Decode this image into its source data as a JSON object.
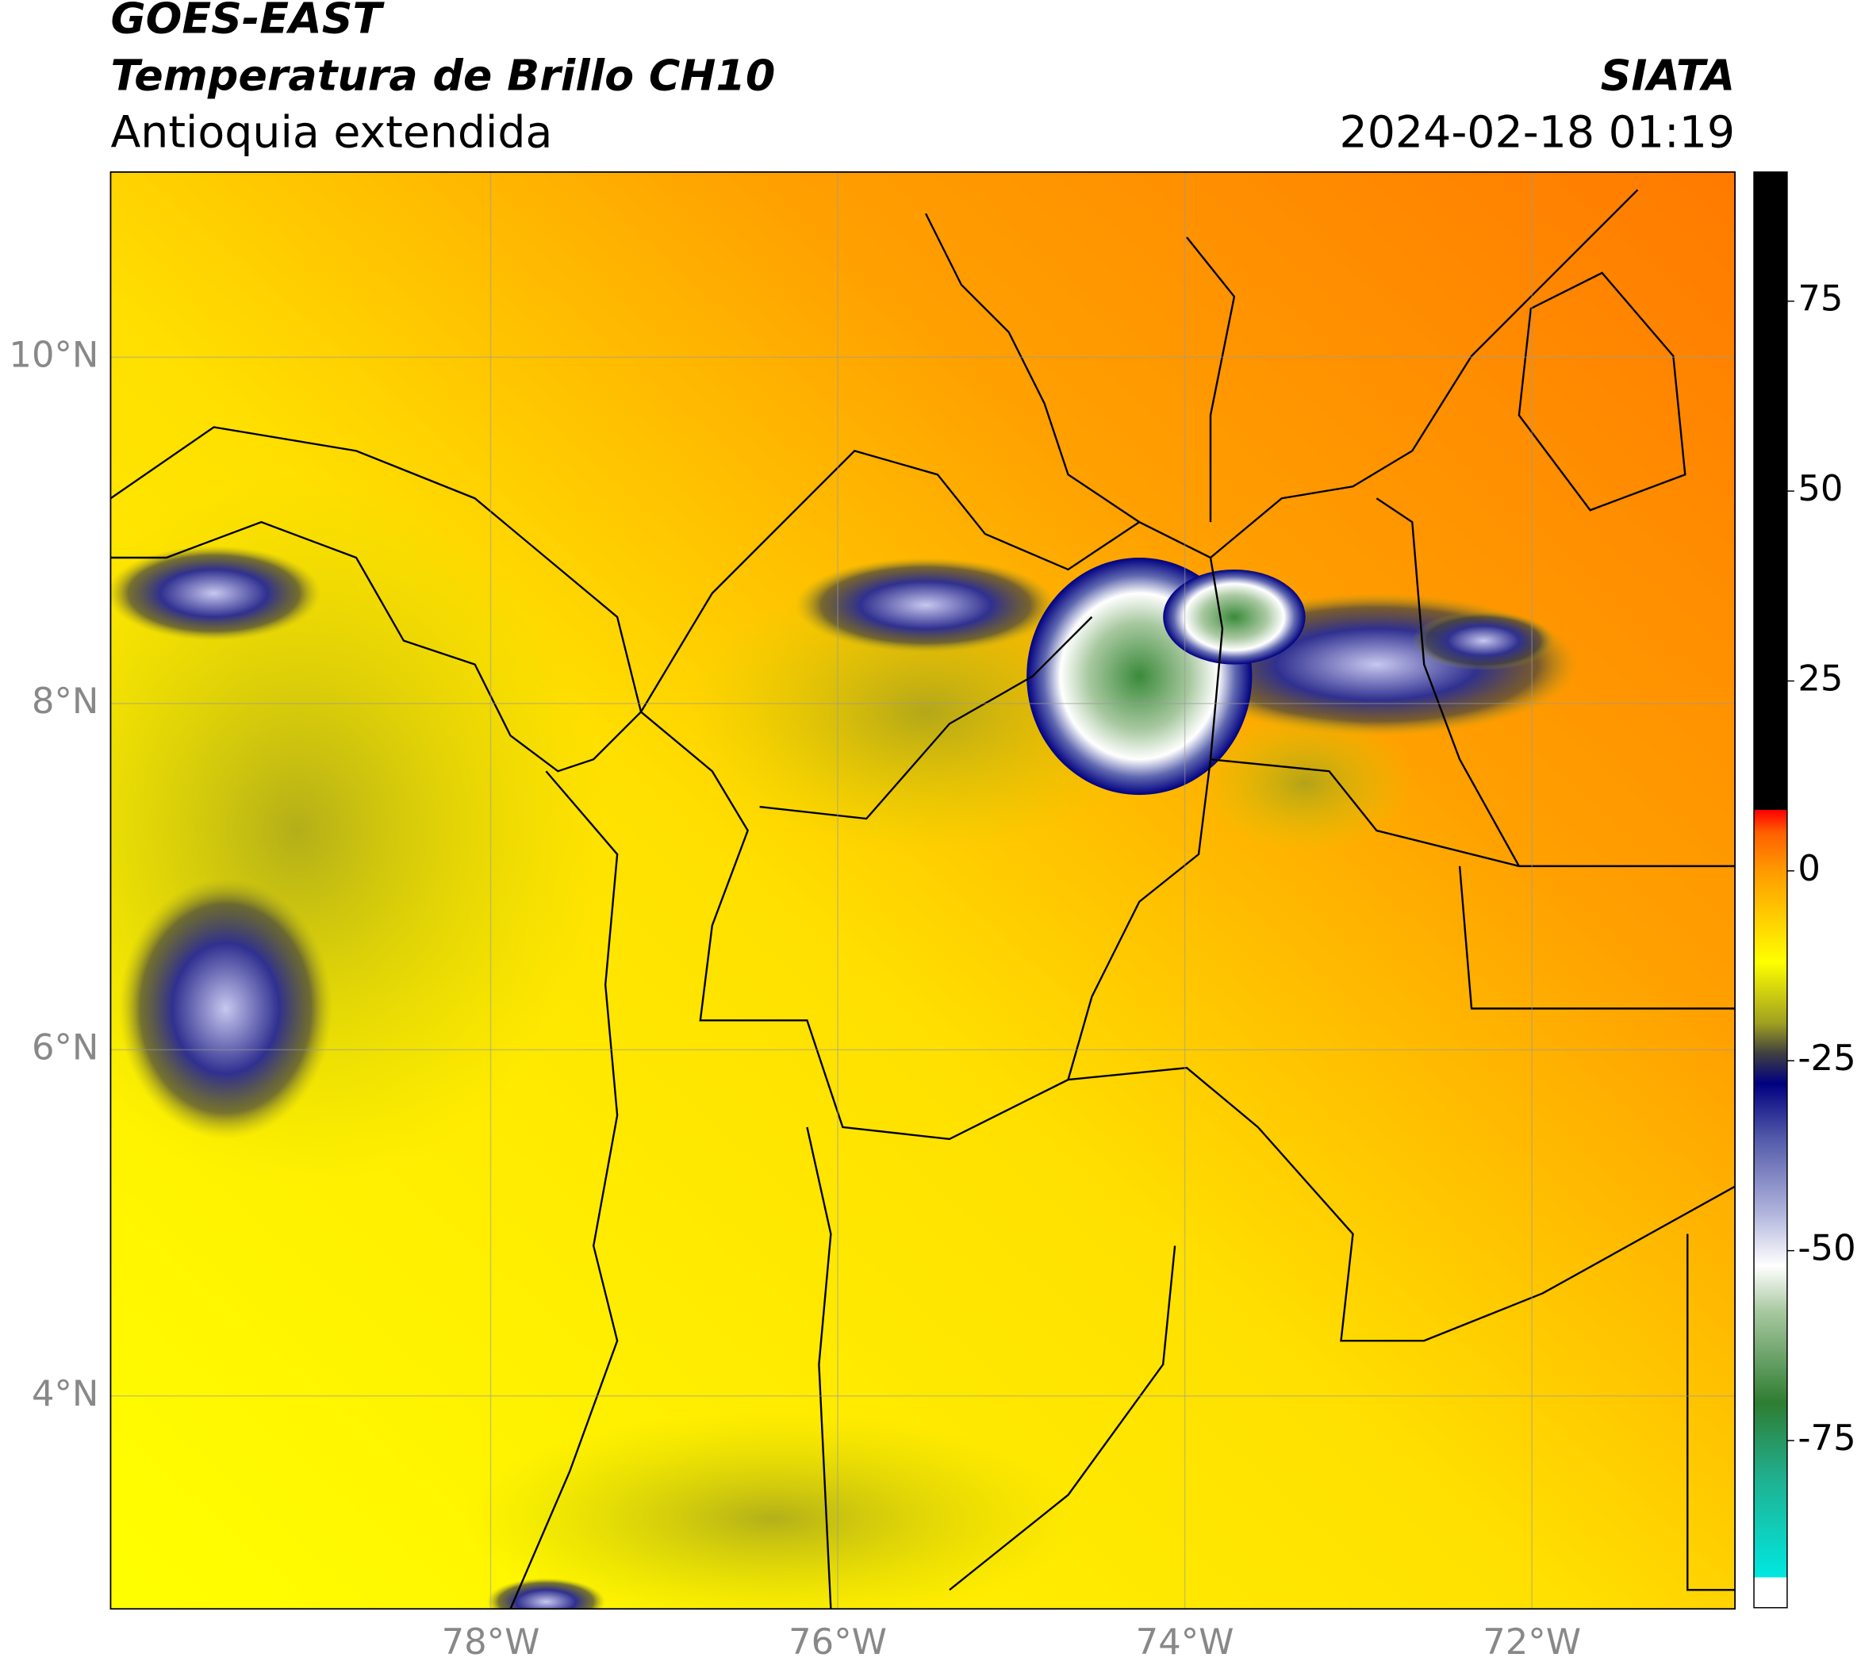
{
  "header": {
    "title": "GOES-EAST",
    "subtitle": "Temperatura de Brillo CH10",
    "region": "Antioquia extendida",
    "source": "SIATA",
    "datetime": "2024-02-18 01:19"
  },
  "map": {
    "lonlim": [
      -80.19,
      -70.83
    ],
    "latlim": [
      2.77,
      11.07
    ],
    "grid": true,
    "xticks": [
      {
        "value": -78,
        "label": "78°W"
      },
      {
        "value": -76,
        "label": "76°W"
      },
      {
        "value": -74,
        "label": "74°W"
      },
      {
        "value": -72,
        "label": "72°W"
      }
    ],
    "yticks": [
      {
        "value": 4,
        "label": "4°N"
      },
      {
        "value": 6,
        "label": "6°N"
      },
      {
        "value": 8,
        "label": "8°N"
      },
      {
        "value": 10,
        "label": "10°N"
      }
    ]
  },
  "colorbar": {
    "lim": [
      -97,
      92
    ],
    "ticks": [
      -75,
      -50,
      -25,
      0,
      25,
      50,
      75
    ],
    "stops": [
      {
        "value": -97,
        "color": "#ffffff"
      },
      {
        "value": -93,
        "color": "#ffffff"
      },
      {
        "value": -93,
        "color": "#00e8e0"
      },
      {
        "value": -80,
        "color": "#20b090"
      },
      {
        "value": -70,
        "color": "#2e7d32"
      },
      {
        "value": -58,
        "color": "#a8c8a0"
      },
      {
        "value": -52,
        "color": "#ffffff"
      },
      {
        "value": -45,
        "color": "#b0b4dc"
      },
      {
        "value": -35,
        "color": "#5058a8"
      },
      {
        "value": -28,
        "color": "#000080"
      },
      {
        "value": -24,
        "color": "#404040"
      },
      {
        "value": -20,
        "color": "#a0a020"
      },
      {
        "value": -12,
        "color": "#ffff00"
      },
      {
        "value": 0,
        "color": "#ff9a00"
      },
      {
        "value": 5,
        "color": "#ff6000"
      },
      {
        "value": 8,
        "color": "#ff0000"
      },
      {
        "value": 8,
        "color": "#000000"
      },
      {
        "value": 92,
        "color": "#000000"
      }
    ]
  }
}
